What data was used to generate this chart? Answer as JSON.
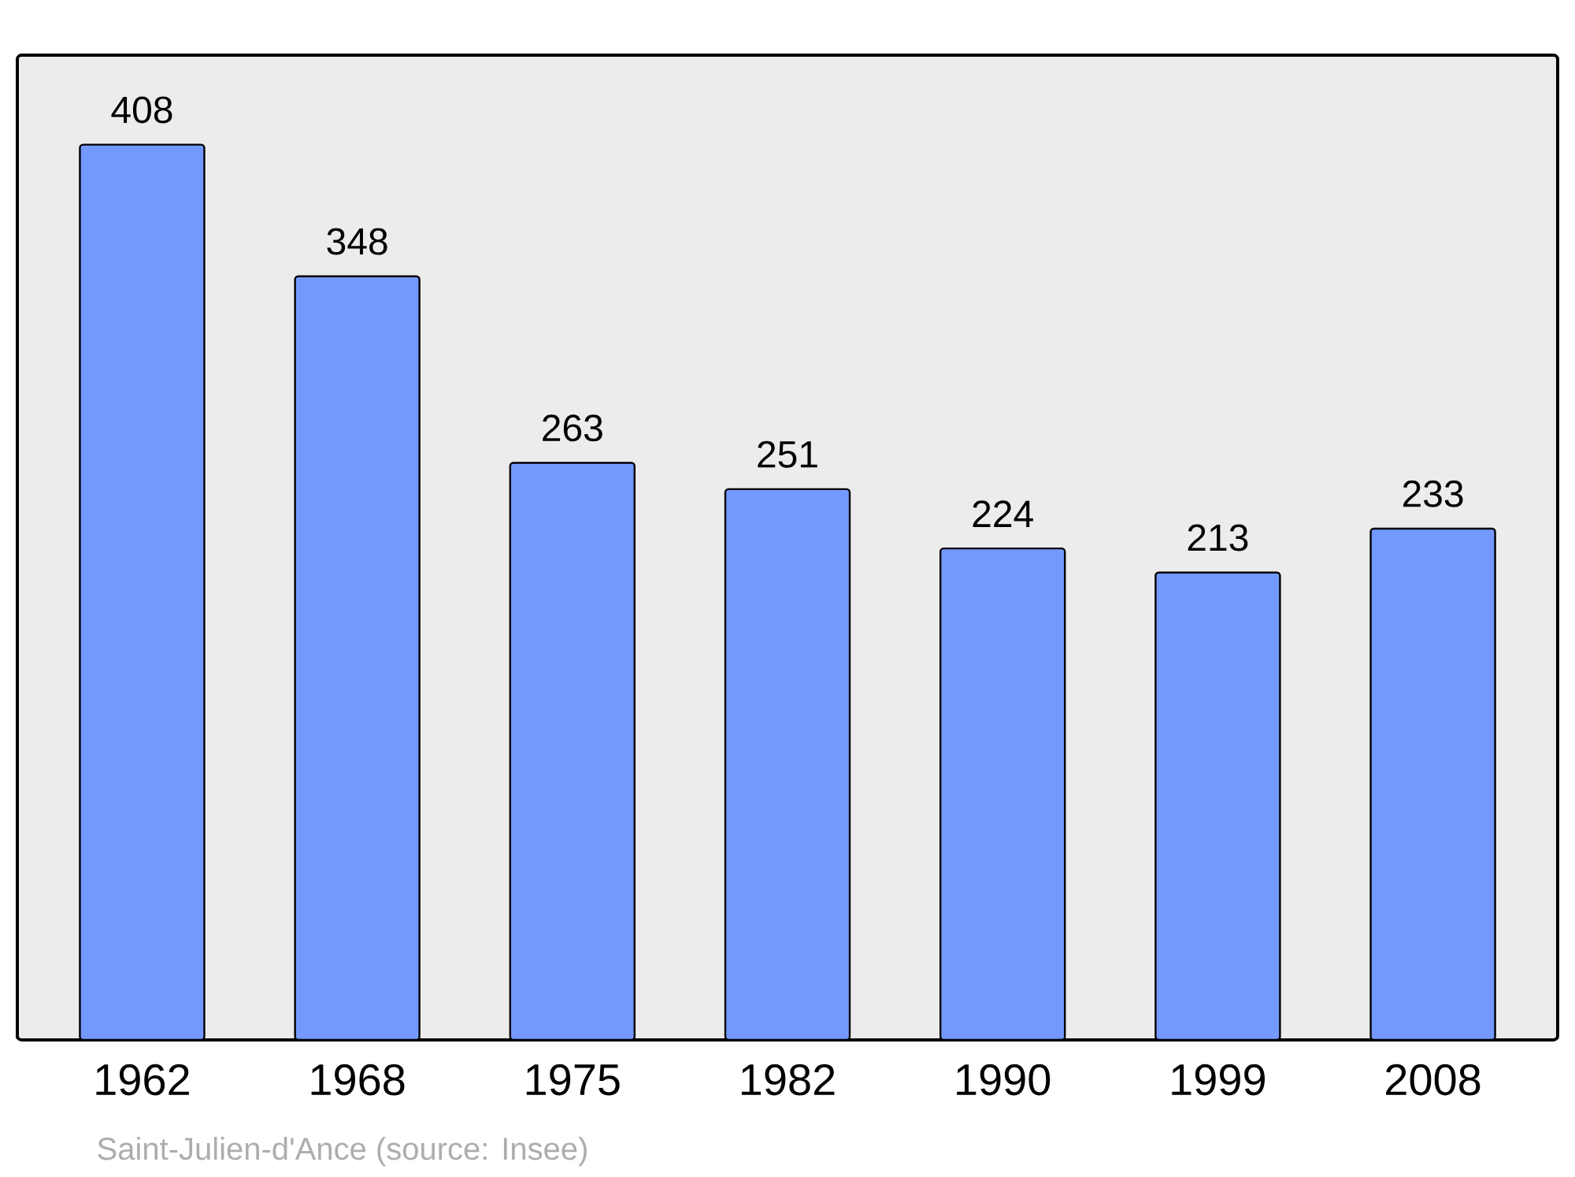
{
  "chart_data": {
    "type": "bar",
    "categories": [
      "1962",
      "1968",
      "1975",
      "1982",
      "1990",
      "1999",
      "2008"
    ],
    "values": [
      408,
      348,
      263,
      251,
      224,
      213,
      233
    ],
    "color": "#7399ff",
    "data_labels": true,
    "annotations": [
      "Saint-Julien-d'Ance    (source: Insee)"
    ]
  }
}
